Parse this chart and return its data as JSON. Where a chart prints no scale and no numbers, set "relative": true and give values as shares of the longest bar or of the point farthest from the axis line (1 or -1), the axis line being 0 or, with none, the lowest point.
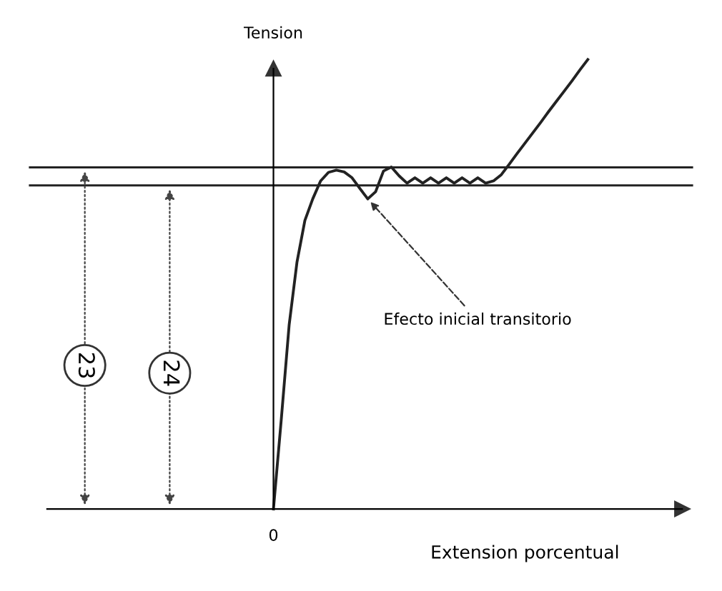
{
  "chart_data": {
    "type": "line",
    "relative": true,
    "xlabel": "Extension porcentual",
    "ylabel": "Tension",
    "categories": [
      null,
      null,
      null,
      null,
      null,
      null,
      null,
      null,
      null,
      null,
      null,
      null,
      null,
      null,
      null,
      null,
      null,
      null,
      null,
      null,
      null,
      null,
      null,
      null,
      null,
      null,
      null,
      null,
      null,
      null,
      null,
      null,
      null,
      null,
      null,
      null,
      null,
      null,
      null,
      null,
      null
    ],
    "series": [
      {
        "color": "#222222",
        "values": [
          0,
          0.2,
          0.41,
          0.55,
          0.642,
          0.69,
          0.73,
          0.749,
          0.754,
          0.75,
          0.737,
          0.713,
          0.69,
          0.706,
          0.752,
          0.761,
          0.741,
          0.725,
          0.737,
          0.725,
          0.737,
          0.725,
          0.737,
          0.725,
          0.737,
          0.725,
          0.737,
          0.725,
          0.73,
          0.744,
          0.767,
          0.791,
          0.814,
          0.837,
          0.86,
          0.884,
          0.907,
          0.93,
          0.953,
          0.977,
          1
        ]
      }
    ],
    "ref_lines": [
      {
        "axis": "y",
        "value": 0.76,
        "color": "#222222"
      },
      {
        "axis": "y",
        "value": 0.72,
        "color": "#222222"
      }
    ],
    "annotations": [
      "Efecto inicial transitorio",
      "23",
      "24",
      {
        "text": "0",
        "y": 0
      }
    ],
    "grid": false,
    "marker": "none",
    "line_style": "solid"
  }
}
